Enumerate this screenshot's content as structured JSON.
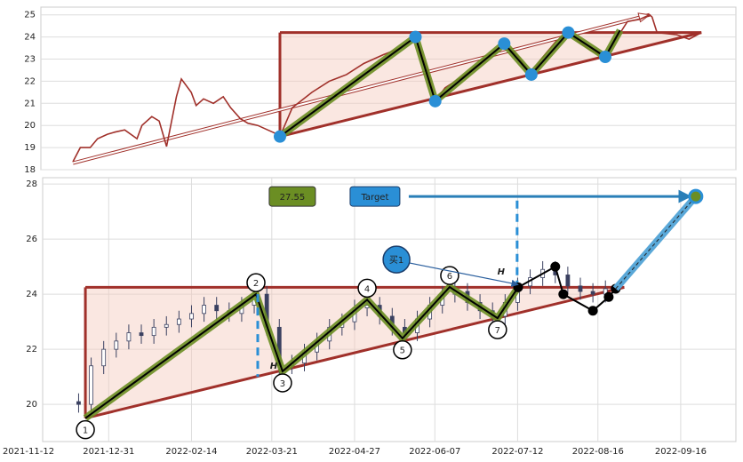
{
  "chart_data": [
    {
      "type": "line",
      "color": "#a0302a",
      "x": [
        13,
        16,
        20,
        23,
        27,
        30,
        34,
        39,
        41,
        45,
        48,
        51,
        55,
        57,
        61,
        63,
        66,
        70,
        74,
        77,
        81,
        84,
        88,
        92,
        96,
        97,
        102,
        110,
        117,
        124,
        131,
        139,
        146,
        152,
        157,
        160,
        164,
        171,
        178,
        184,
        188,
        193,
        199,
        203,
        209,
        214,
        218,
        223,
        229,
        234,
        238,
        243,
        247,
        248,
        250,
        258,
        263,
        268
      ],
      "values": [
        18.36,
        19.0,
        19.0,
        19.4,
        19.6,
        19.7,
        19.8,
        19.4,
        20.0,
        20.4,
        20.2,
        19.05,
        21.3,
        22.1,
        21.5,
        20.9,
        21.2,
        21.0,
        21.3,
        20.8,
        20.3,
        20.1,
        20.0,
        19.8,
        19.6,
        19.5,
        20.8,
        21.5,
        22.0,
        22.3,
        22.8,
        23.2,
        23.5,
        24.0,
        22.5,
        21.1,
        21.7,
        22.2,
        22.8,
        23.3,
        23.7,
        23.2,
        22.3,
        23.0,
        23.8,
        24.2,
        23.8,
        23.4,
        23.1,
        24.0,
        24.7,
        24.8,
        25.0,
        24.9,
        24.2,
        24.1,
        23.9,
        24.2
      ],
      "xlim": [
        0,
        282
      ],
      "ylim": [
        18,
        25.35
      ],
      "yticks": [
        18,
        19,
        20,
        21,
        22,
        23,
        24,
        25
      ],
      "grid": true,
      "resistance": {
        "x": [
          97,
          268
        ],
        "values": [
          24.2,
          24.2
        ]
      },
      "support": {
        "x": [
          97,
          268
        ],
        "values": [
          19.5,
          24.2
        ]
      },
      "zigzag": {
        "x": [
          97,
          152,
          160,
          188,
          199,
          214,
          229,
          235
        ],
        "values": [
          19.5,
          24.0,
          21.1,
          23.7,
          22.3,
          24.2,
          23.1,
          24.3
        ]
      },
      "trend_arrow": {
        "x": [
          13,
          247
        ],
        "values": [
          18.3,
          25.0
        ]
      }
    },
    {
      "type": "candlestick",
      "x": [
        20,
        25,
        30,
        35,
        40,
        45,
        50,
        55,
        60,
        65,
        70,
        75,
        80,
        85,
        90,
        95,
        100,
        105,
        110,
        115,
        120,
        125,
        130,
        135,
        140,
        145,
        150,
        155,
        160,
        165,
        170,
        175,
        180,
        185,
        190,
        195,
        200,
        205,
        210,
        215,
        220,
        225,
        230
      ],
      "open": [
        20.1,
        20.0,
        21.4,
        22.0,
        22.3,
        22.6,
        22.5,
        22.8,
        22.9,
        23.1,
        23.3,
        23.6,
        23.4,
        23.3,
        23.6,
        24.0,
        22.8,
        21.4,
        21.5,
        21.9,
        22.3,
        22.8,
        23.0,
        23.5,
        23.6,
        23.2,
        22.8,
        22.6,
        23.1,
        23.6,
        24.0,
        24.1,
        23.7,
        23.4,
        23.2,
        23.7,
        24.3,
        24.6,
        24.9,
        24.7,
        24.3,
        24.1,
        24.0
      ],
      "high": [
        20.4,
        21.7,
        22.3,
        22.6,
        22.9,
        22.9,
        23.1,
        23.2,
        23.4,
        23.6,
        23.9,
        23.9,
        23.7,
        23.9,
        24.3,
        24.3,
        23.1,
        21.8,
        22.2,
        22.6,
        23.1,
        23.3,
        23.8,
        23.9,
        23.9,
        23.5,
        23.1,
        23.4,
        23.9,
        24.3,
        24.4,
        24.4,
        24.0,
        23.7,
        24.0,
        24.6,
        24.9,
        25.2,
        25.2,
        25.0,
        24.6,
        24.4,
        24.5
      ],
      "low": [
        19.7,
        19.7,
        21.1,
        21.7,
        22.0,
        22.2,
        22.2,
        22.5,
        22.6,
        22.8,
        23.0,
        23.1,
        23.0,
        23.0,
        23.3,
        22.5,
        21.1,
        21.1,
        21.2,
        21.6,
        22.0,
        22.5,
        22.7,
        23.2,
        22.9,
        22.5,
        22.3,
        22.3,
        22.8,
        23.3,
        23.7,
        23.4,
        23.1,
        22.9,
        22.9,
        23.4,
        24.0,
        24.3,
        24.4,
        24.0,
        23.8,
        23.7,
        23.7
      ],
      "close": [
        20.0,
        21.4,
        22.0,
        22.3,
        22.6,
        22.5,
        22.8,
        22.9,
        23.1,
        23.3,
        23.6,
        23.4,
        23.3,
        23.6,
        24.0,
        22.8,
        21.4,
        21.5,
        21.9,
        22.3,
        22.8,
        23.0,
        23.5,
        23.6,
        23.2,
        22.8,
        22.6,
        23.1,
        23.6,
        24.0,
        24.1,
        23.7,
        23.4,
        23.2,
        23.7,
        24.3,
        24.6,
        24.9,
        24.7,
        24.3,
        24.1,
        24.0,
        24.2
      ],
      "xlim": [
        0,
        282
      ],
      "ylim": [
        18.65,
        28.23
      ],
      "xticks": [
        {
          "value": 0,
          "label": "2021-11-12"
        },
        {
          "value": 32,
          "label": "2021-12-31"
        },
        {
          "value": 65,
          "label": "2022-02-14"
        },
        {
          "value": 97,
          "label": "2022-03-21"
        },
        {
          "value": 130,
          "label": "2022-04-27"
        },
        {
          "value": 162,
          "label": "2022-06-07"
        },
        {
          "value": 195,
          "label": "2022-07-12"
        },
        {
          "value": 227,
          "label": "2022-08-16"
        },
        {
          "value": 260,
          "label": "2022-09-16"
        }
      ],
      "yticks": [
        20,
        22,
        24,
        26,
        28
      ],
      "grid": true,
      "resistance": {
        "x": [
          22.7,
          237.5
        ],
        "values": [
          24.25,
          24.25
        ]
      },
      "support": {
        "x": [
          22.7,
          237.5
        ],
        "values": [
          19.5,
          24.25
        ]
      },
      "zigzag": {
        "x": [
          22.7,
          90.7,
          101.3,
          135,
          149.1,
          167.9,
          187,
          195.2
        ],
        "values": [
          19.5,
          24.0,
          21.2,
          23.8,
          22.4,
          24.26,
          23.13,
          24.25
        ],
        "labels": [
          "1",
          "2",
          "3",
          "4",
          "5",
          "6",
          "7"
        ]
      },
      "breakout": {
        "x": [
          195.2,
          210,
          213.2,
          225,
          231.3,
          234.1
        ],
        "values": [
          24.25,
          25.0,
          24.0,
          23.4,
          23.9,
          24.2
        ]
      },
      "height_markers": [
        {
          "x": 91.4,
          "values": [
            24.0,
            21.0
          ],
          "label": "H"
        },
        {
          "x": 194.8,
          "values": [
            27.4,
            24.3
          ],
          "label": "H"
        }
      ],
      "target": {
        "label": "Target",
        "value": 27.55,
        "value_label": "27.55",
        "x": [
          151.6,
          266
        ]
      },
      "projection": {
        "x": [
          234.1,
          266
        ],
        "values": [
          24.2,
          27.55
        ]
      },
      "buy": {
        "label": "买1",
        "x": 146.7,
        "value": 25.26,
        "arrow_x": 195.2,
        "arrow_value": 24.35
      }
    }
  ]
}
